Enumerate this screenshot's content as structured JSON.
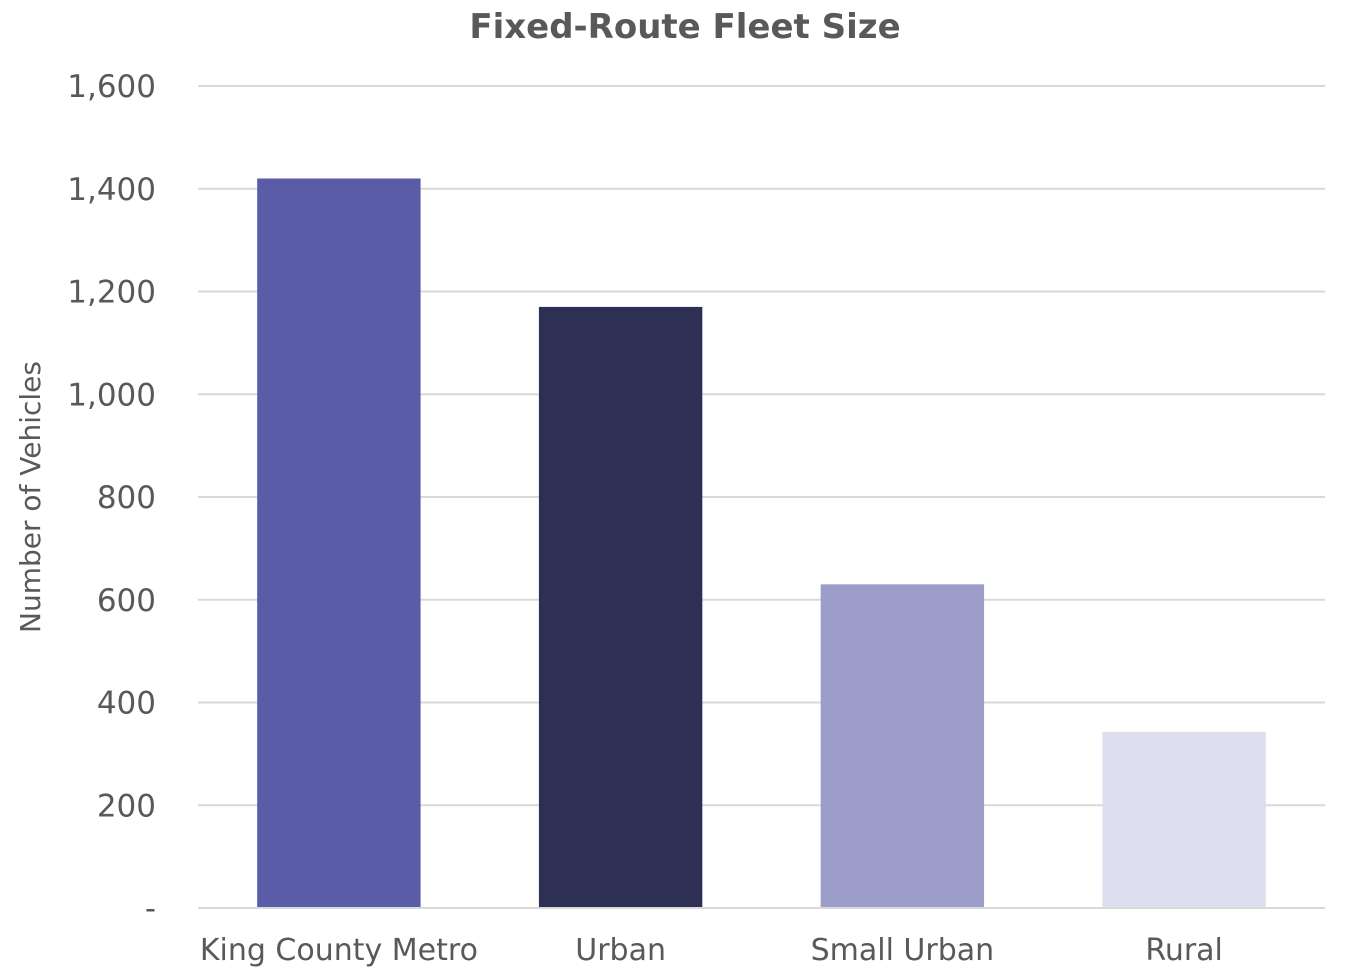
{
  "chart_data": {
    "type": "bar",
    "title": "Fixed-Route Fleet Size",
    "xlabel": "",
    "ylabel": "Number of Vehicles",
    "categories": [
      "King County Metro",
      "Urban",
      "Small Urban",
      "Rural"
    ],
    "values": [
      1420,
      1170,
      630,
      343
    ],
    "colors": [
      "#5a5ca8",
      "#2e2f55",
      "#9c9dc9",
      "#dddeee"
    ],
    "ylim": [
      0,
      1600
    ],
    "yticks": [
      0,
      200,
      400,
      600,
      800,
      1000,
      1200,
      1400,
      1600
    ],
    "ytick_labels": [
      "-",
      "200",
      "400",
      "600",
      "800",
      "1,000",
      "1,200",
      "1,400",
      "1,600"
    ],
    "grid": true,
    "legend": "none"
  }
}
